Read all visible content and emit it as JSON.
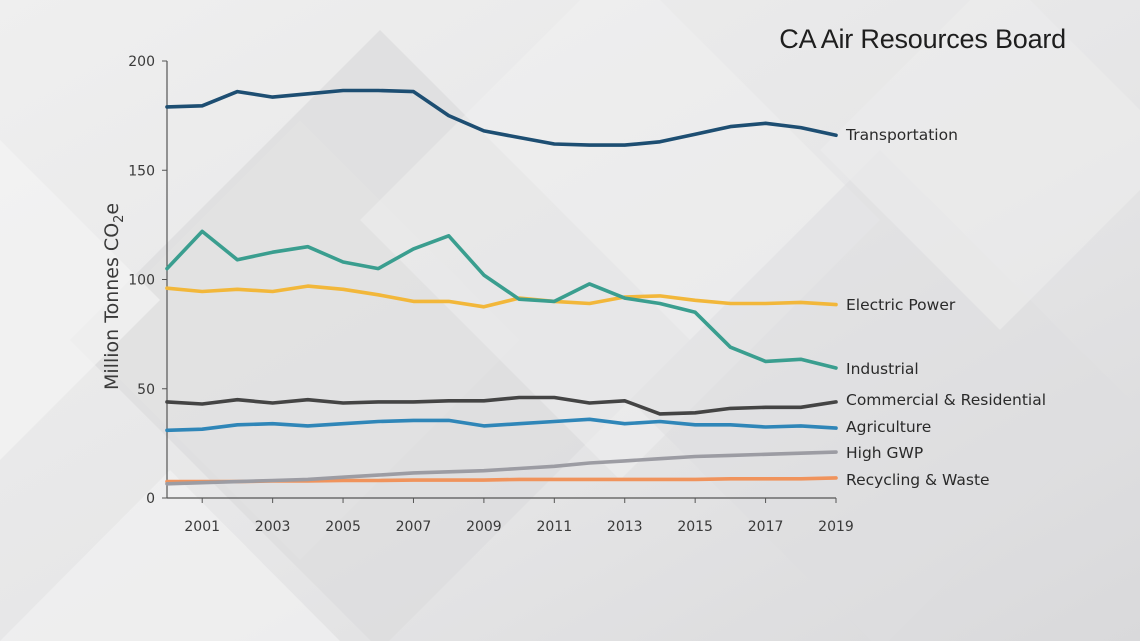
{
  "source_title": "CA Air Resources Board",
  "chart_data": {
    "type": "line",
    "title": "",
    "xlabel": "",
    "ylabel": "Million Tonnes CO2e",
    "ylabel_main": "Million Tonnes CO",
    "ylabel_sub": "2",
    "ylabel_tail": "e",
    "ylim": [
      0,
      200
    ],
    "xlim": [
      2000,
      2019
    ],
    "yticks": [
      0,
      50,
      100,
      150,
      200
    ],
    "xticks": [
      2001,
      2003,
      2005,
      2007,
      2009,
      2011,
      2013,
      2015,
      2017,
      2019
    ],
    "grid": false,
    "legend": "inline-right",
    "x": [
      2000,
      2001,
      2002,
      2003,
      2004,
      2005,
      2006,
      2007,
      2008,
      2009,
      2010,
      2011,
      2012,
      2013,
      2014,
      2015,
      2016,
      2017,
      2018,
      2019
    ],
    "series": [
      {
        "name": "Transportation",
        "color": "#1d4e72",
        "values": [
          179,
          179.5,
          186,
          183.5,
          185,
          186.5,
          186.5,
          186,
          175,
          168,
          165,
          162,
          161.5,
          161.5,
          163,
          166.5,
          170,
          171.5,
          169.5,
          166
        ]
      },
      {
        "name": "Electric Power",
        "color": "#f2b73a",
        "values": [
          96,
          94.5,
          95.5,
          94.5,
          97,
          95.5,
          93,
          90,
          90,
          87.5,
          91.5,
          90,
          89,
          92,
          92.5,
          90.5,
          89,
          89,
          89.5,
          88.5
        ]
      },
      {
        "name": "Industrial",
        "color": "#3a9e8f",
        "values": [
          105,
          122,
          109,
          112.5,
          115,
          108,
          105,
          114,
          120,
          102,
          91,
          90,
          98,
          91.5,
          89,
          85,
          69,
          62.5,
          63.5,
          59.5
        ]
      },
      {
        "name": "Commercial & Residential",
        "color": "#444444",
        "values": [
          44,
          43,
          45,
          43.5,
          45,
          43.5,
          44,
          44,
          44.5,
          44.5,
          46,
          46,
          43.5,
          44.5,
          38.5,
          39,
          41,
          41.5,
          41.5,
          44
        ]
      },
      {
        "name": "Agriculture",
        "color": "#2f86b8",
        "values": [
          31,
          31.5,
          33.5,
          34,
          33,
          34,
          35,
          35.5,
          35.5,
          33,
          34,
          35,
          36,
          34,
          35,
          33.5,
          33.5,
          32.5,
          33,
          32
        ]
      },
      {
        "name": "High GWP",
        "color": "#9c9ca3",
        "values": [
          6.5,
          7,
          7.5,
          8,
          8.5,
          9.5,
          10.5,
          11.5,
          12,
          12.5,
          13.5,
          14.5,
          16,
          17,
          18,
          19,
          19.5,
          20,
          20.5,
          21
        ]
      },
      {
        "name": "Recycling & Waste",
        "color": "#f0935c",
        "values": [
          7.5,
          7.5,
          7.5,
          7.8,
          7.8,
          8,
          8,
          8.2,
          8.2,
          8.2,
          8.5,
          8.5,
          8.5,
          8.5,
          8.5,
          8.5,
          8.8,
          8.8,
          8.8,
          9.2
        ]
      }
    ]
  }
}
